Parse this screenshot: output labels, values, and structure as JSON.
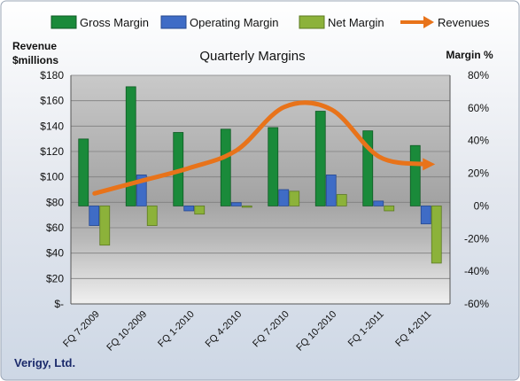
{
  "chart_data": {
    "type": "bar",
    "title": "Quarterly Margins",
    "company": "Verigy, Ltd.",
    "y_left_label_line1": "Revenue",
    "y_left_label_line2": "$millions",
    "y_right_label": "Margin %",
    "categories": [
      "FQ 7-2009",
      "FQ 10-2009",
      "FQ 1-2010",
      "FQ 4-2010",
      "FQ 7-2010",
      "FQ 10-2010",
      "FQ 1-2011",
      "FQ 4-2011"
    ],
    "left_axis": {
      "range": [
        0,
        180
      ],
      "ticks": [
        0,
        20,
        40,
        60,
        80,
        100,
        120,
        140,
        160,
        180
      ],
      "tick_labels": [
        "$-",
        "$20",
        "$40",
        "$60",
        "$80",
        "$100",
        "$120",
        "$140",
        "$160",
        "$180"
      ]
    },
    "right_axis": {
      "range": [
        -60,
        80
      ],
      "ticks": [
        -60,
        -40,
        -20,
        0,
        20,
        40,
        60,
        80
      ],
      "tick_labels": [
        "-60%",
        "-40%",
        "-20%",
        "0%",
        "20%",
        "40%",
        "60%",
        "80%"
      ]
    },
    "series": [
      {
        "name": "Gross Margin",
        "axis": "right",
        "color": "#1a8a3a",
        "values": [
          41,
          73,
          45,
          47,
          48,
          58,
          46,
          37
        ]
      },
      {
        "name": "Operating Margin",
        "axis": "right",
        "color": "#3f6cc6",
        "values": [
          -12,
          19,
          -3,
          2,
          10,
          19,
          3,
          -11
        ]
      },
      {
        "name": "Net Margin",
        "axis": "right",
        "color": "#8cb23a",
        "values": [
          -24,
          -12,
          -5,
          -0.5,
          9,
          7,
          -3,
          -35
        ]
      },
      {
        "name": "Revenues",
        "axis": "left",
        "type": "line",
        "color": "#e8731a",
        "values": [
          87,
          97,
          107,
          121,
          155,
          153,
          116,
          110
        ]
      }
    ],
    "legend_position": "top",
    "grid": true
  }
}
